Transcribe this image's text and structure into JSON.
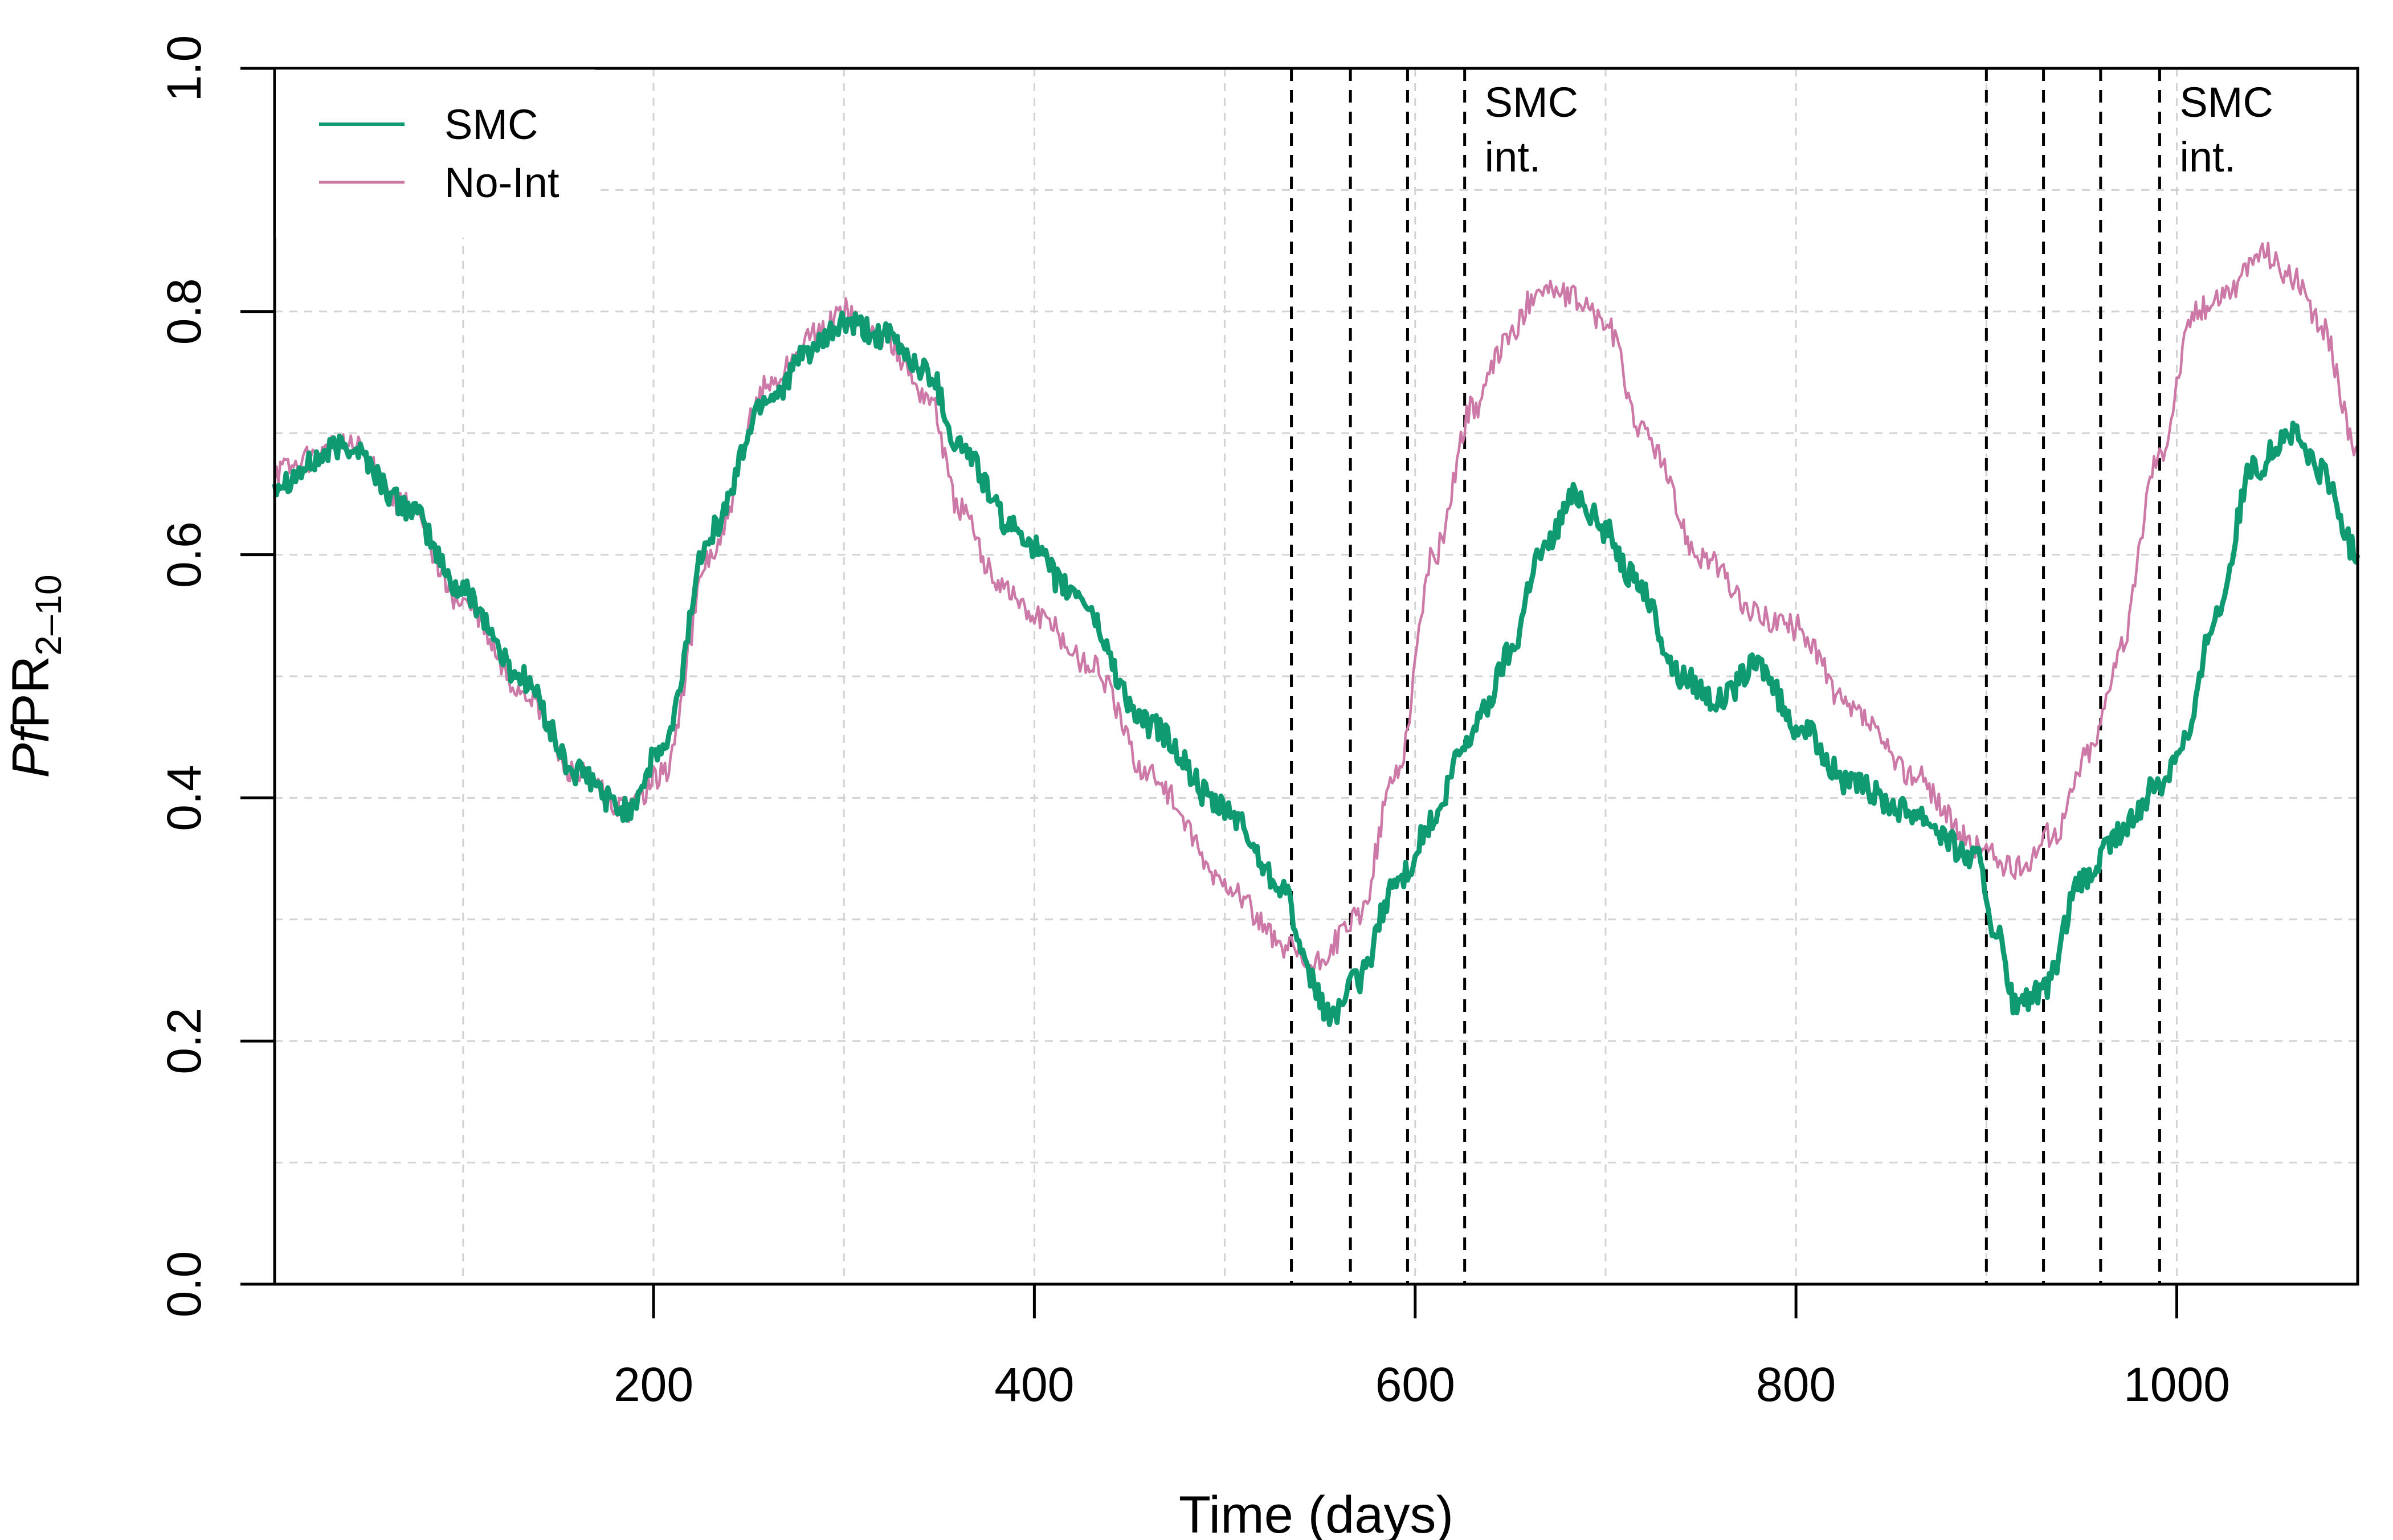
{
  "chart_data": {
    "type": "line",
    "title": "",
    "xlabel": "Time (days)",
    "ylabel": {
      "prefix": "P",
      "italic": "f",
      "suffix": "PR",
      "subscript": "2–10"
    },
    "xlim": [
      1,
      1095
    ],
    "ylim": [
      0,
      1
    ],
    "x_ticks": [
      200,
      400,
      600,
      800,
      1000
    ],
    "x_tick_labels": [
      "200",
      "400",
      "600",
      "800",
      "1000"
    ],
    "y_ticks": [
      0,
      0.2,
      0.4,
      0.6,
      0.8,
      1.0
    ],
    "y_tick_labels": [
      "0.0",
      "0.2",
      "0.4",
      "0.6",
      "0.8",
      "1.0"
    ],
    "grid": true,
    "legend": {
      "placement": "top-left",
      "entries": [
        "SMC",
        "No-Int"
      ]
    },
    "series": [
      {
        "name": "SMC",
        "color": "#109a72",
        "x": [
          1,
          40,
          70,
          100,
          130,
          160,
          185,
          205,
          230,
          260,
          285,
          300,
          320,
          345,
          360,
          390,
          420,
          460,
          500,
          530,
          545,
          555,
          570,
          590,
          610,
          625,
          635,
          650,
          665,
          685,
          700,
          715,
          740,
          760,
          780,
          800,
          830,
          860,
          895,
          905,
          915,
          930,
          950,
          970,
          990,
          1005,
          1020,
          1040,
          1060,
          1075,
          1095
        ],
        "values": [
          0.66,
          0.69,
          0.64,
          0.57,
          0.5,
          0.42,
          0.39,
          0.44,
          0.62,
          0.73,
          0.77,
          0.79,
          0.78,
          0.75,
          0.69,
          0.62,
          0.57,
          0.46,
          0.39,
          0.33,
          0.25,
          0.22,
          0.25,
          0.33,
          0.38,
          0.44,
          0.47,
          0.52,
          0.6,
          0.65,
          0.62,
          0.58,
          0.5,
          0.48,
          0.51,
          0.46,
          0.41,
          0.39,
          0.35,
          0.29,
          0.23,
          0.24,
          0.33,
          0.37,
          0.41,
          0.45,
          0.55,
          0.67,
          0.7,
          0.67,
          0.6
        ]
      },
      {
        "name": "No-Int",
        "color": "#cc79a7",
        "x": [
          1,
          40,
          70,
          100,
          130,
          160,
          185,
          205,
          230,
          260,
          285,
          300,
          320,
          345,
          360,
          380,
          400,
          430,
          460,
          500,
          530,
          545,
          570,
          590,
          610,
          630,
          650,
          665,
          685,
          700,
          720,
          750,
          780,
          800,
          830,
          860,
          895,
          915,
          935,
          955,
          970,
          990,
          1010,
          1030,
          1045,
          1060,
          1075,
          1095
        ],
        "values": [
          0.67,
          0.69,
          0.64,
          0.56,
          0.49,
          0.42,
          0.39,
          0.42,
          0.6,
          0.74,
          0.78,
          0.8,
          0.78,
          0.73,
          0.64,
          0.58,
          0.55,
          0.51,
          0.42,
          0.33,
          0.28,
          0.26,
          0.3,
          0.42,
          0.6,
          0.72,
          0.78,
          0.82,
          0.81,
          0.79,
          0.7,
          0.6,
          0.55,
          0.54,
          0.47,
          0.42,
          0.36,
          0.34,
          0.37,
          0.44,
          0.52,
          0.68,
          0.8,
          0.82,
          0.85,
          0.83,
          0.79,
          0.69
        ]
      }
    ],
    "vlines": [
      535,
      566,
      596,
      626,
      900,
      930,
      960,
      991
    ],
    "annotations": [
      {
        "text_lines": [
          "SMC",
          "int."
        ],
        "x": 626
      },
      {
        "text_lines": [
          "SMC",
          "int."
        ],
        "x": 991
      }
    ]
  }
}
